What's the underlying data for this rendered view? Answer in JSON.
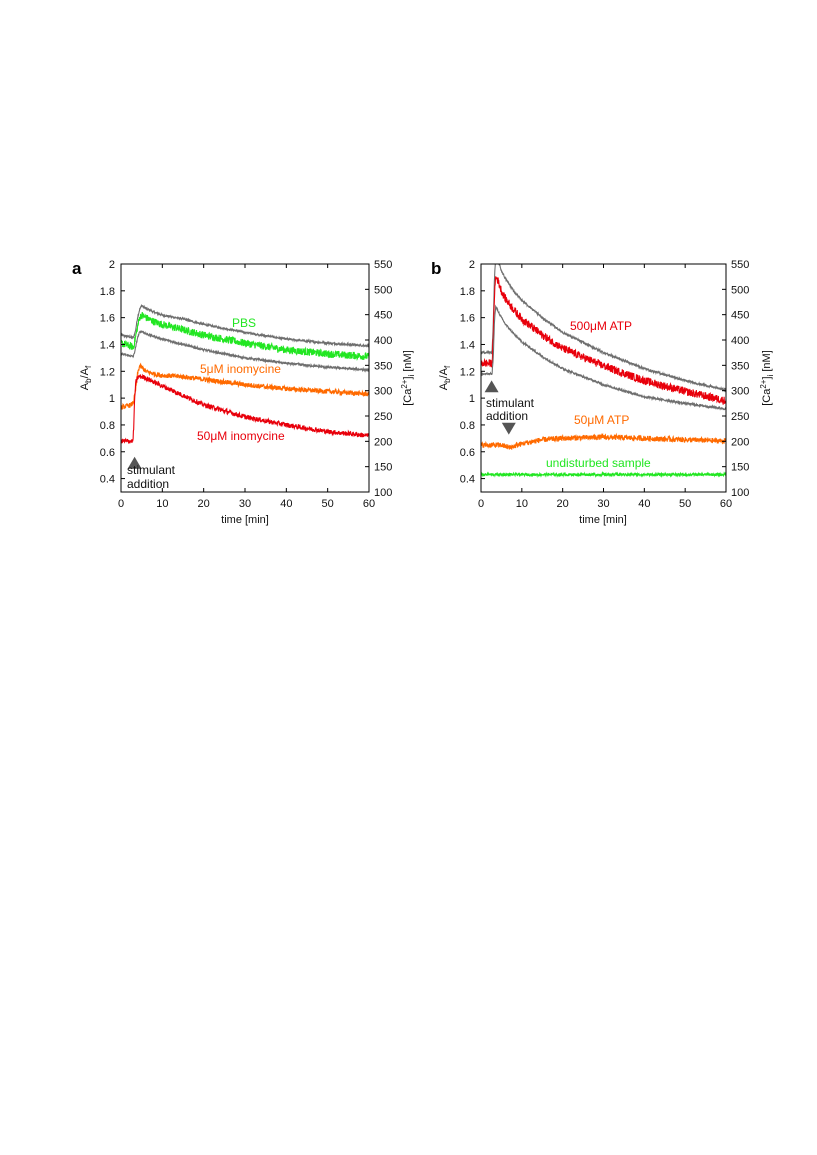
{
  "chart_data": [
    {
      "panel": "a",
      "type": "line",
      "xlabel": "time [min]",
      "ylabel_main": "A",
      "ylabel_sub1": "b",
      "ylabel_slash": "/A",
      "ylabel_sub2": "f",
      "y2label_pre": "[Ca",
      "y2label_sup": "2+",
      "y2label_mid": "]",
      "y2label_sub": "i",
      "y2label_post": " [nM]",
      "xlim": [
        0,
        60
      ],
      "ylim": [
        0.3,
        2
      ],
      "y2lim": [
        100,
        550
      ],
      "xticks": [
        "0",
        "10",
        "20",
        "30",
        "40",
        "50",
        "60"
      ],
      "yticks": [
        "0.4",
        "0.6",
        "0.8",
        "1",
        "1.2",
        "1.4",
        "1.6",
        "1.8",
        "2"
      ],
      "y2ticks": [
        "100",
        "150",
        "200",
        "250",
        "300",
        "350",
        "400",
        "450",
        "500",
        "550"
      ],
      "series": [
        {
          "name": "PBS upper",
          "color": "#6e6e6e",
          "x": [
            0,
            3,
            3.5,
            4,
            4.5,
            5,
            6,
            8,
            10,
            15,
            20,
            30,
            40,
            50,
            60
          ],
          "y": [
            1.47,
            1.45,
            1.5,
            1.6,
            1.66,
            1.69,
            1.67,
            1.64,
            1.62,
            1.59,
            1.55,
            1.49,
            1.44,
            1.41,
            1.39
          ],
          "noise": 0.008
        },
        {
          "name": "PBS",
          "color": "#22e622",
          "x": [
            0,
            3,
            3.5,
            4,
            4.5,
            5,
            6,
            8,
            10,
            15,
            20,
            30,
            40,
            50,
            60
          ],
          "y": [
            1.41,
            1.38,
            1.45,
            1.53,
            1.6,
            1.62,
            1.6,
            1.57,
            1.55,
            1.51,
            1.47,
            1.41,
            1.36,
            1.33,
            1.31
          ],
          "noise": 0.028
        },
        {
          "name": "PBS lower",
          "color": "#6e6e6e",
          "x": [
            0,
            3,
            3.5,
            4,
            4.5,
            5,
            6,
            8,
            10,
            15,
            20,
            30,
            40,
            50,
            60
          ],
          "y": [
            1.33,
            1.31,
            1.37,
            1.45,
            1.49,
            1.5,
            1.48,
            1.46,
            1.44,
            1.4,
            1.36,
            1.3,
            1.26,
            1.23,
            1.21
          ],
          "noise": 0.008
        },
        {
          "name": "5µM inomycine",
          "color": "#ff6a00",
          "x": [
            0,
            2.5,
            3,
            3.5,
            4,
            4.5,
            5,
            6,
            8,
            10,
            15,
            20,
            30,
            40,
            50,
            60
          ],
          "y": [
            0.93,
            0.95,
            0.97,
            1.05,
            1.18,
            1.24,
            1.23,
            1.2,
            1.18,
            1.17,
            1.16,
            1.14,
            1.1,
            1.07,
            1.05,
            1.03
          ],
          "noise": 0.018
        },
        {
          "name": "50µM inomycine",
          "color": "#e8000b",
          "x": [
            0,
            2.9,
            3.1,
            3.3,
            3.6,
            4,
            4.5,
            5,
            6,
            8,
            10,
            15,
            20,
            30,
            40,
            50,
            60
          ],
          "y": [
            0.68,
            0.68,
            0.8,
            1.0,
            1.12,
            1.15,
            1.16,
            1.16,
            1.15,
            1.12,
            1.09,
            1.02,
            0.95,
            0.86,
            0.8,
            0.75,
            0.72
          ],
          "noise": 0.018
        }
      ],
      "labels": [
        {
          "text": "PBS",
          "color": "#22e622"
        },
        {
          "text": "5μM inomycine",
          "color": "#ff6a00"
        },
        {
          "text": "50μM inomycine",
          "color": "#e8000b"
        }
      ],
      "markers": [
        {
          "dir": "up",
          "x": 3.3,
          "y": 0.51,
          "text": [
            "stimulant",
            "addition"
          ]
        }
      ]
    },
    {
      "panel": "b",
      "type": "line",
      "xlabel": "time [min]",
      "ylabel_main": "A",
      "ylabel_sub1": "b",
      "ylabel_slash": "/A",
      "ylabel_sub2": "f",
      "y2label_pre": "[Ca",
      "y2label_sup": "2+",
      "y2label_mid": "]",
      "y2label_sub": "i",
      "y2label_post": " [nM]",
      "xlim": [
        0,
        60
      ],
      "ylim": [
        0.3,
        2
      ],
      "y2lim": [
        100,
        550
      ],
      "xticks": [
        "0",
        "10",
        "20",
        "30",
        "40",
        "50",
        "60"
      ],
      "yticks": [
        "0.4",
        "0.6",
        "0.8",
        "1",
        "1.2",
        "1.4",
        "1.6",
        "1.8",
        "2"
      ],
      "y2ticks": [
        "100",
        "150",
        "200",
        "250",
        "300",
        "350",
        "400",
        "450",
        "500",
        "550"
      ],
      "series": [
        {
          "name": "500µM ATP upper",
          "color": "#6e6e6e",
          "x": [
            0,
            2.7,
            3,
            3.3,
            3.6,
            4,
            5,
            6,
            8,
            10,
            15,
            20,
            30,
            40,
            50,
            60
          ],
          "y": [
            1.34,
            1.34,
            1.55,
            1.9,
            2.05,
            2.04,
            1.95,
            1.89,
            1.8,
            1.73,
            1.6,
            1.49,
            1.34,
            1.22,
            1.13,
            1.06
          ],
          "noise": 0.008
        },
        {
          "name": "500µM ATP",
          "color": "#e8000b",
          "x": [
            0,
            2.7,
            3,
            3.3,
            3.6,
            4,
            5,
            6,
            8,
            10,
            15,
            20,
            30,
            40,
            50,
            60
          ],
          "y": [
            1.26,
            1.26,
            1.45,
            1.78,
            1.9,
            1.89,
            1.8,
            1.74,
            1.66,
            1.59,
            1.47,
            1.37,
            1.24,
            1.13,
            1.05,
            0.98
          ],
          "noise": 0.03
        },
        {
          "name": "500µM ATP lower",
          "color": "#6e6e6e",
          "x": [
            0,
            2.7,
            3,
            3.3,
            3.6,
            4,
            5,
            6,
            8,
            10,
            15,
            20,
            30,
            40,
            50,
            60
          ],
          "y": [
            1.18,
            1.18,
            1.3,
            1.58,
            1.68,
            1.66,
            1.6,
            1.55,
            1.48,
            1.42,
            1.31,
            1.22,
            1.1,
            1.01,
            0.96,
            0.92
          ],
          "noise": 0.008
        },
        {
          "name": "50µM ATP",
          "color": "#ff6a00",
          "x": [
            0,
            5,
            7,
            10,
            15,
            20,
            30,
            40,
            50,
            60
          ],
          "y": [
            0.65,
            0.65,
            0.63,
            0.66,
            0.69,
            0.7,
            0.71,
            0.7,
            0.69,
            0.68
          ],
          "noise": 0.02
        },
        {
          "name": "undisturbed sample",
          "color": "#22e622",
          "x": [
            0,
            60
          ],
          "y": [
            0.43,
            0.43
          ],
          "noise": 0.01
        }
      ],
      "labels": [
        {
          "text": "500μM ATP",
          "color": "#e8000b"
        },
        {
          "text": "50μM ATP",
          "color": "#ff6a00"
        },
        {
          "text": "undisturbed sample",
          "color": "#22e622"
        }
      ],
      "markers": [
        {
          "dir": "up",
          "x": 2.6,
          "y": 1.08,
          "text": [
            "stimulant",
            "addition"
          ]
        },
        {
          "dir": "down",
          "x": 6.8,
          "y": 0.78,
          "text": []
        }
      ]
    }
  ]
}
